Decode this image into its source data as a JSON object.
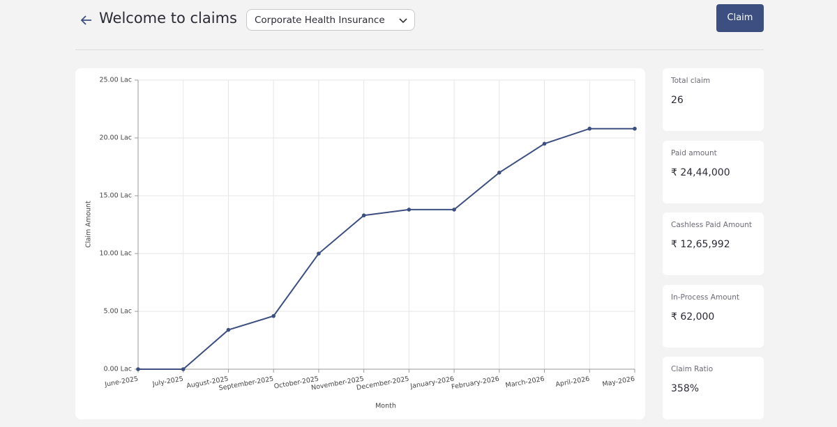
{
  "header": {
    "title": "Welcome to claims",
    "dropdown": "Corporate Health Insurance",
    "button": "Claim"
  },
  "chart_data": {
    "type": "line",
    "x_label": "Month",
    "y_label": "Claim Amount",
    "categories": [
      "June-2025",
      "July-2025",
      "August-2025",
      "September-2025",
      "October-2025",
      "November-2025",
      "December-2025",
      "January-2026",
      "February-2026",
      "March-2026",
      "April-2026",
      "May-2026"
    ],
    "series": [
      {
        "name": "Claim Amount",
        "color": "#3d4f80",
        "values": [
          0,
          0,
          3.4,
          4.6,
          10.0,
          13.3,
          13.8,
          13.8,
          17.0,
          19.5,
          20.8,
          20.8
        ]
      }
    ],
    "ylim": [
      0,
      25
    ],
    "yticks": [
      {
        "value": 0,
        "label": "0.00 Lac"
      },
      {
        "value": 5,
        "label": "5.00 Lac"
      },
      {
        "value": 10,
        "label": "10.00 Lac"
      },
      {
        "value": 15,
        "label": "15.00 Lac"
      },
      {
        "value": 20,
        "label": "20.00 Lac"
      },
      {
        "value": 25,
        "label": "25.00 Lac"
      }
    ],
    "grid": true
  },
  "cards": [
    {
      "label": "Total claim",
      "value": "26"
    },
    {
      "label": "Paid amount",
      "value": "₹ 24,44,000"
    },
    {
      "label": "Cashless Paid Amount",
      "value": "₹ 12,65,992"
    },
    {
      "label": "In-Process Amount",
      "value": "₹ 62,000"
    },
    {
      "label": "Claim Ratio",
      "value": "358%"
    }
  ]
}
